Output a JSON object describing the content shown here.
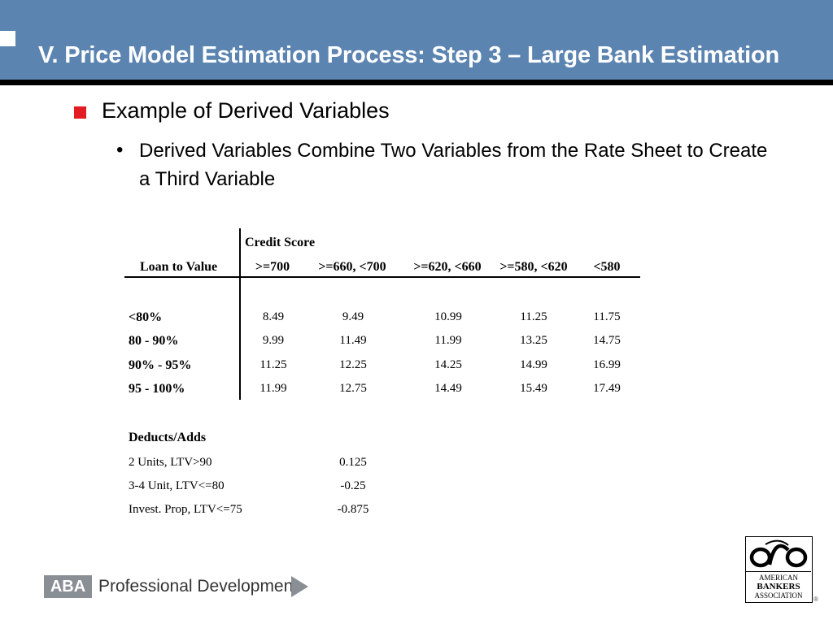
{
  "slide": {
    "title": "V.  Price Model Estimation Process: Step 3 – Large Bank Estimation",
    "bullet_l1": "Example of Derived Variables",
    "bullet_l2_marker": "•",
    "bullet_l2": "Derived Variables Combine Two Variables from the Rate Sheet to Create a Third Variable"
  },
  "table": {
    "group_header": "Credit Score",
    "row_header": "Loan to Value",
    "columns": [
      ">=700",
      ">=660, <700",
      ">=620, <660",
      ">=580, <620",
      "<580"
    ],
    "rows": [
      {
        "label": "<80%",
        "values": [
          "8.49",
          "9.49",
          "10.99",
          "11.25",
          "11.75"
        ]
      },
      {
        "label": "80 - 90%",
        "values": [
          "9.99",
          "11.49",
          "11.99",
          "13.25",
          "14.75"
        ]
      },
      {
        "label": "90%  - 95%",
        "values": [
          "11.25",
          "12.25",
          "14.25",
          "14.99",
          "16.99"
        ]
      },
      {
        "label": "95 - 100%",
        "values": [
          "11.99",
          "12.75",
          "14.49",
          "15.49",
          "17.49"
        ]
      }
    ]
  },
  "adjustments": {
    "header": "Deducts/Adds",
    "items": [
      {
        "label": "2 Units, LTV>90",
        "value": "0.125"
      },
      {
        "label": "3-4 Unit, LTV<=80",
        "value": "-0.25"
      },
      {
        "label": "Invest. Prop, LTV<=75",
        "value": "-0.875"
      }
    ]
  },
  "footer": {
    "brand_abbr": "ABA",
    "brand_text": "Professional Development",
    "arrow_icon": "play-triangle-icon"
  },
  "logo": {
    "line1": "AMERICAN",
    "line2": "BANKERS",
    "line3": "ASSOCIATION",
    "reg": "®"
  },
  "colors": {
    "banner": "#5b84b1",
    "bullet_red": "#e31b23",
    "footer_grey": "#8a8f96"
  }
}
